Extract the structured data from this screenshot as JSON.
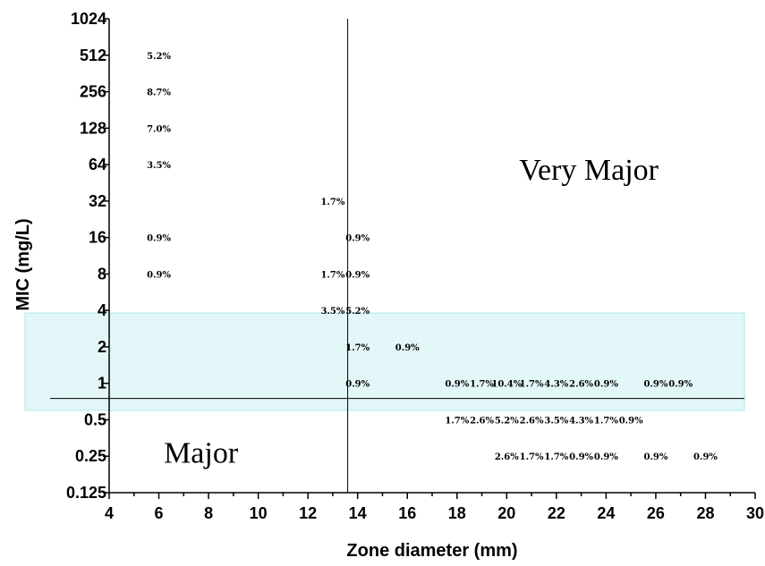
{
  "chart_data": {
    "type": "scatter",
    "xlabel": "Zone diameter (mm)",
    "ylabel": "MIC (mg/L)",
    "xlim": [
      4,
      30
    ],
    "x_ticks": [
      "4",
      "6",
      "8",
      "10",
      "12",
      "14",
      "16",
      "18",
      "20",
      "22",
      "24",
      "26",
      "28",
      "30"
    ],
    "y_scale": "log2",
    "ylim": [
      0.125,
      1024
    ],
    "y_ticks": [
      {
        "value": 0.125,
        "label": "0.125"
      },
      {
        "value": 0.25,
        "label": "0.25"
      },
      {
        "value": 0.5,
        "label": "0.5"
      },
      {
        "value": 1,
        "label": "1"
      },
      {
        "value": 2,
        "label": "2"
      },
      {
        "value": 4,
        "label": "4"
      },
      {
        "value": 8,
        "label": "8"
      },
      {
        "value": 16,
        "label": "16"
      },
      {
        "value": 32,
        "label": "32"
      },
      {
        "value": 64,
        "label": "64"
      },
      {
        "value": 128,
        "label": "128"
      },
      {
        "value": 256,
        "label": "256"
      },
      {
        "value": 512,
        "label": "512"
      },
      {
        "value": 1024,
        "label": "1024"
      }
    ],
    "breakpoint_zone_mm": 13.6,
    "breakpoint_mic": 0.75,
    "highlight_mic_range": [
      0.6,
      3.8
    ],
    "highlight_color": "#e4f7f8",
    "highlight_border": "#bfeff0",
    "region_labels": [
      {
        "text": "Very Major",
        "x": 20.5,
        "y": 48
      },
      {
        "text": "Major",
        "x": 6.2,
        "y": 0.22
      }
    ],
    "points": [
      {
        "x": 6,
        "y": 512,
        "label": "5.2%"
      },
      {
        "x": 6,
        "y": 256,
        "label": "8.7%"
      },
      {
        "x": 6,
        "y": 128,
        "label": "7.0%"
      },
      {
        "x": 6,
        "y": 64,
        "label": "3.5%"
      },
      {
        "x": 6,
        "y": 16,
        "label": "0.9%"
      },
      {
        "x": 6,
        "y": 8,
        "label": "0.9%"
      },
      {
        "x": 13,
        "y": 32,
        "label": "1.7%"
      },
      {
        "x": 14,
        "y": 16,
        "label": "0.9%"
      },
      {
        "x": 13,
        "y": 8,
        "label": "1.7%"
      },
      {
        "x": 14,
        "y": 8,
        "label": "0.9%"
      },
      {
        "x": 13,
        "y": 4,
        "label": "3.5%"
      },
      {
        "x": 14,
        "y": 4,
        "label": "5.2%"
      },
      {
        "x": 14,
        "y": 2,
        "label": "1.7%"
      },
      {
        "x": 16,
        "y": 2,
        "label": "0.9%"
      },
      {
        "x": 14,
        "y": 1,
        "label": "0.9%"
      },
      {
        "x": 18,
        "y": 1,
        "label": "0.9%"
      },
      {
        "x": 19,
        "y": 1,
        "label": "1.7%"
      },
      {
        "x": 20,
        "y": 1,
        "label": "10.4%"
      },
      {
        "x": 21,
        "y": 1,
        "label": "1.7%"
      },
      {
        "x": 22,
        "y": 1,
        "label": "4.3%"
      },
      {
        "x": 23,
        "y": 1,
        "label": "2.6%"
      },
      {
        "x": 24,
        "y": 1,
        "label": "0.9%"
      },
      {
        "x": 26,
        "y": 1,
        "label": "0.9%"
      },
      {
        "x": 27,
        "y": 1,
        "label": "0.9%"
      },
      {
        "x": 18,
        "y": 0.5,
        "label": "1.7%"
      },
      {
        "x": 19,
        "y": 0.5,
        "label": "2.6%"
      },
      {
        "x": 20,
        "y": 0.5,
        "label": "5.2%"
      },
      {
        "x": 21,
        "y": 0.5,
        "label": "2.6%"
      },
      {
        "x": 22,
        "y": 0.5,
        "label": "3.5%"
      },
      {
        "x": 23,
        "y": 0.5,
        "label": "4.3%"
      },
      {
        "x": 24,
        "y": 0.5,
        "label": "1.7%"
      },
      {
        "x": 25,
        "y": 0.5,
        "label": "0.9%"
      },
      {
        "x": 20,
        "y": 0.25,
        "label": "2.6%"
      },
      {
        "x": 21,
        "y": 0.25,
        "label": "1.7%"
      },
      {
        "x": 22,
        "y": 0.25,
        "label": "1.7%"
      },
      {
        "x": 23,
        "y": 0.25,
        "label": "0.9%"
      },
      {
        "x": 24,
        "y": 0.25,
        "label": "0.9%"
      },
      {
        "x": 26,
        "y": 0.25,
        "label": "0.9%"
      },
      {
        "x": 28,
        "y": 0.25,
        "label": "0.9%"
      }
    ]
  }
}
